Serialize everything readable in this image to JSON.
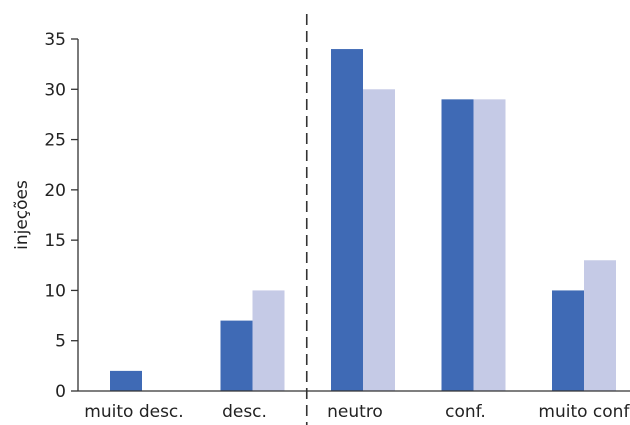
{
  "chart_data": {
    "type": "bar",
    "title": "",
    "xlabel": "",
    "ylabel": "injeções",
    "ylim": [
      0,
      35
    ],
    "yticks": [
      0,
      5,
      10,
      15,
      20,
      25,
      30,
      35
    ],
    "categories": [
      "muito desc.",
      "desc.",
      "neutro",
      "conf.",
      "muito conf."
    ],
    "series": [
      {
        "values": [
          2,
          7,
          34,
          29,
          10
        ],
        "color": "#3f6ab5"
      },
      {
        "values": [
          0,
          10,
          30,
          29,
          13
        ],
        "color": "#c5cae6"
      }
    ],
    "divider": {
      "style": "dashed",
      "between": [
        "desc.",
        "neutro"
      ]
    },
    "grid": false,
    "legend": "none"
  }
}
